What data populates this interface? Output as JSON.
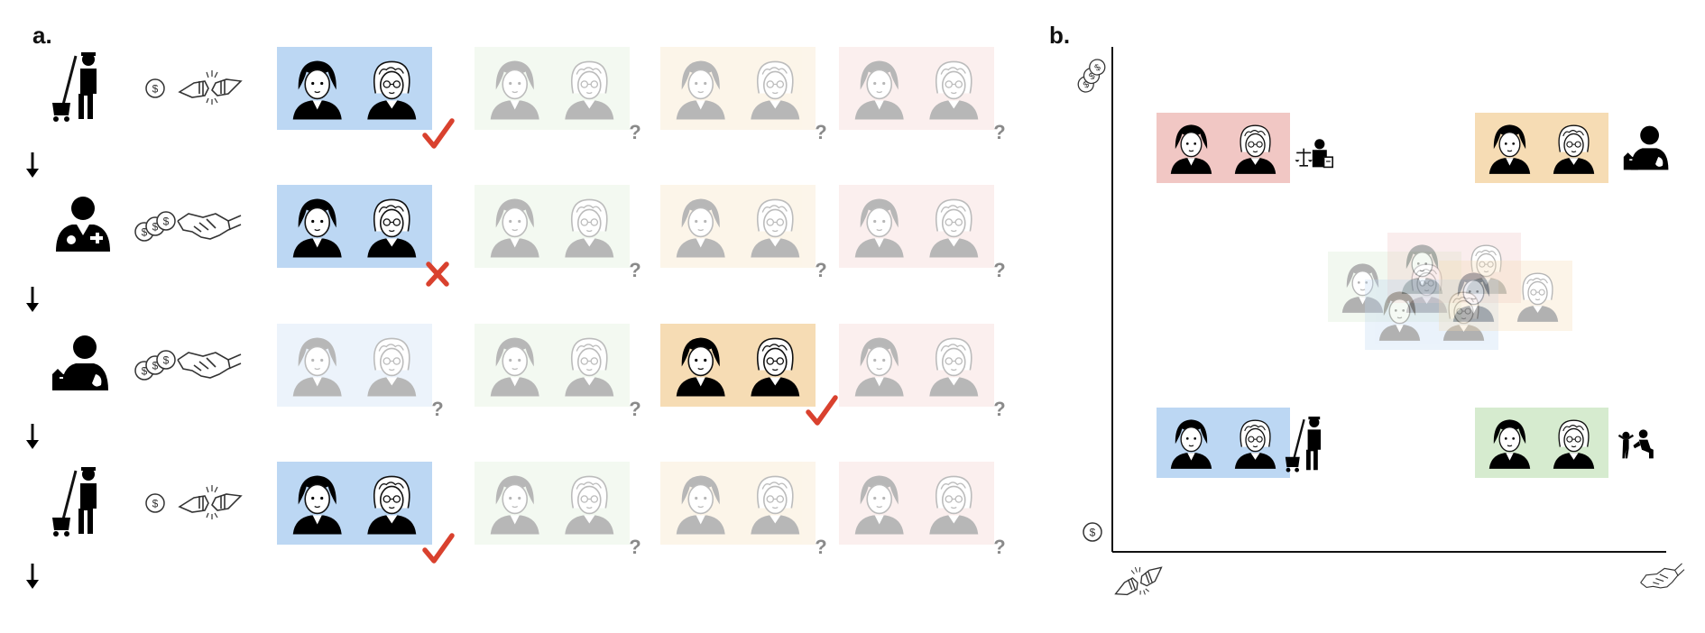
{
  "panel_a": {
    "label": "a.",
    "mark_symbols": {
      "check": "✓",
      "cross": "✗",
      "question": "?"
    },
    "group_colors": [
      "#bcd7f3",
      "#d6ebcf",
      "#f6dcb4",
      "#f1c7c4"
    ],
    "rows": [
      {
        "worker_icon": "janitor-icon",
        "pay_icon": "single-coin-icon",
        "interaction_icon": "fist-bump-icon",
        "active_group": 0,
        "faded_groups": [
          1,
          2,
          3
        ],
        "marks": [
          "check",
          "question",
          "question",
          "question"
        ]
      },
      {
        "worker_icon": "doctor-icon",
        "pay_icon": "three-coins-icon",
        "interaction_icon": "handshake-icon",
        "active_group": 0,
        "faded_groups": [
          1,
          2,
          3
        ],
        "marks": [
          "cross",
          "question",
          "question",
          "question"
        ]
      },
      {
        "worker_icon": "veterinarian-icon",
        "pay_icon": "three-coins-icon",
        "interaction_icon": "handshake-icon",
        "active_group": 2,
        "faded_groups": [
          0,
          1,
          3
        ],
        "marks": [
          "question",
          "question",
          "check",
          "question"
        ]
      },
      {
        "worker_icon": "janitor-icon",
        "pay_icon": "single-coin-icon",
        "interaction_icon": "fist-bump-icon",
        "active_group": 0,
        "faded_groups": [
          1,
          2,
          3
        ],
        "marks": [
          "check",
          "question",
          "question",
          "question"
        ]
      }
    ]
  },
  "panel_b": {
    "label": "b.",
    "y_axis_icons": {
      "top": "three-coins-icon",
      "bottom": "single-coin-icon"
    },
    "x_axis_icons": {
      "left": "fist-bump-icon",
      "right": "handshake-icon"
    },
    "quadrants": [
      {
        "position": "top-left",
        "group": 3,
        "occupation_icon": "lawyer-icon"
      },
      {
        "position": "top-right",
        "group": 2,
        "occupation_icon": "veterinarian-icon"
      },
      {
        "position": "bottom-left",
        "group": 0,
        "occupation_icon": "janitor-icon"
      },
      {
        "position": "bottom-right",
        "group": 1,
        "occupation_icon": "childcare-icon"
      }
    ],
    "center_cluster_groups": [
      1,
      3,
      0,
      2
    ]
  }
}
